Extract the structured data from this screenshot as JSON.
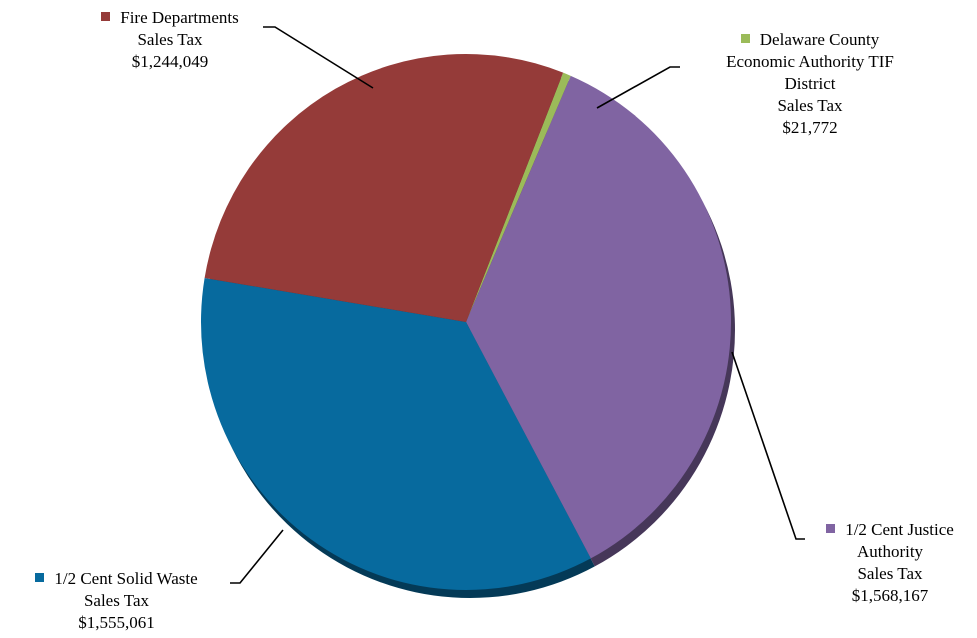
{
  "chart_data": {
    "type": "pie",
    "title": "",
    "slices": [
      {
        "label": [
          "Delaware County",
          "Economic Authority TIF",
          "District",
          "Sales Tax"
        ],
        "value": 21772,
        "value_label": "$21,772",
        "color": "#9BBB59"
      },
      {
        "label": [
          "1/2 Cent Justice",
          "Authority",
          "Sales Tax"
        ],
        "value": 1568167,
        "value_label": "$1,568,167",
        "color": "#8064A2"
      },
      {
        "label": [
          "1/2 Cent Solid Waste",
          "Sales Tax"
        ],
        "value": 1555061,
        "value_label": "$1,555,061",
        "color": "#076A9E"
      },
      {
        "label": [
          "Fire Departments",
          "Sales Tax"
        ],
        "value": 1244049,
        "value_label": "$1,244,049",
        "color": "#953B39"
      }
    ],
    "legend": "none"
  }
}
